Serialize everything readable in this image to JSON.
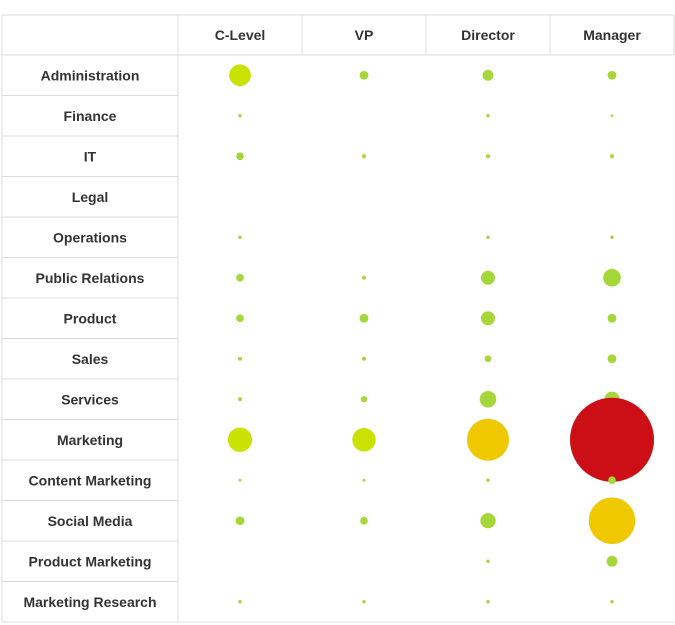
{
  "chart_data": {
    "type": "bubble-matrix",
    "columns": [
      "C-Level",
      "VP",
      "Director",
      "Manager"
    ],
    "rows": [
      "Administration",
      "Finance",
      "IT",
      "Legal",
      "Operations",
      "Public Relations",
      "Product",
      "Sales",
      "Services",
      "Marketing",
      "Content Marketing",
      "Social Media",
      "Product Marketing",
      "Marketing Research"
    ],
    "values": [
      [
        12,
        2,
        3,
        2
      ],
      [
        0.3,
        0,
        0.3,
        0.2
      ],
      [
        1.5,
        0.4,
        0.4,
        0.4
      ],
      [
        0,
        0,
        0,
        0
      ],
      [
        0.3,
        0,
        0.3,
        0.3
      ],
      [
        1.5,
        0.4,
        5,
        8
      ],
      [
        1.5,
        2,
        5,
        2
      ],
      [
        0.4,
        0.4,
        1.2,
        2
      ],
      [
        0.4,
        1,
        7,
        6
      ],
      [
        15,
        14,
        45,
        180
      ],
      [
        0.2,
        0.2,
        0.3,
        1.5
      ],
      [
        2,
        1.5,
        6,
        55
      ],
      [
        0,
        0,
        0.3,
        3
      ],
      [
        0.3,
        0.3,
        0.3,
        0.3
      ]
    ],
    "color_scale": [
      "#a5d63a",
      "#c9e200",
      "#f2e600",
      "#f0c800",
      "#cc0f17"
    ]
  }
}
